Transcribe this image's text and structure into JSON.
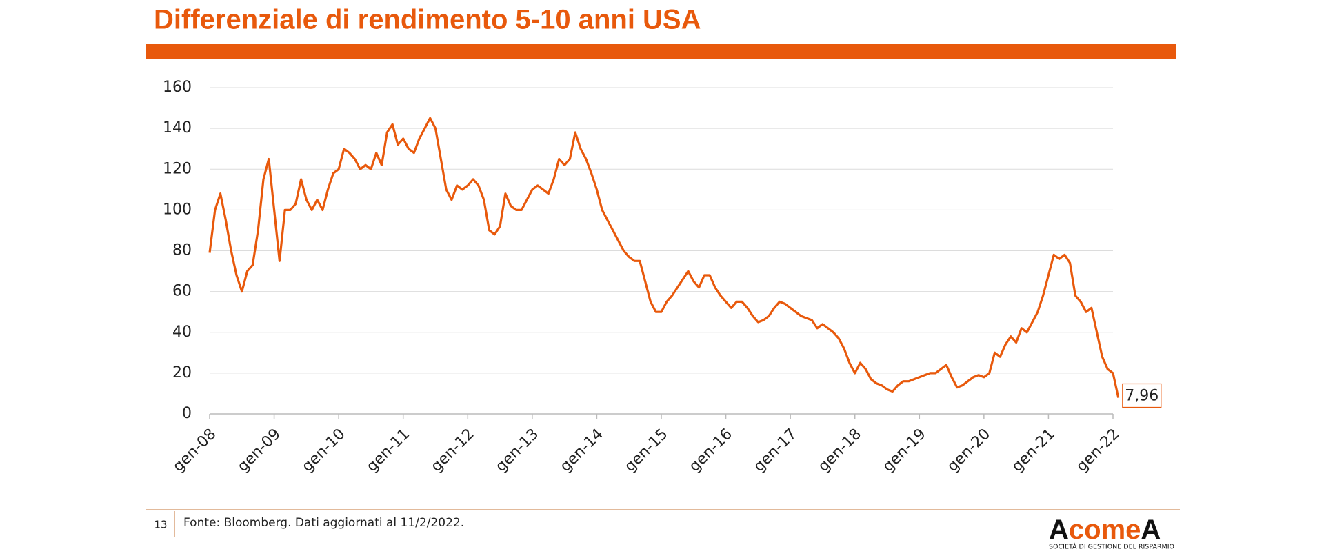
{
  "chart_data": {
    "type": "line",
    "title": "Differenziale di rendimento 5-10 anni USA",
    "x": [
      "2008-01",
      "2008-02",
      "2008-03",
      "2008-04",
      "2008-05",
      "2008-06",
      "2008-07",
      "2008-08",
      "2008-09",
      "2008-10",
      "2008-11",
      "2008-12",
      "2009-01",
      "2009-02",
      "2009-03",
      "2009-04",
      "2009-05",
      "2009-06",
      "2009-07",
      "2009-08",
      "2009-09",
      "2009-10",
      "2009-11",
      "2009-12",
      "2010-01",
      "2010-02",
      "2010-03",
      "2010-04",
      "2010-05",
      "2010-06",
      "2010-07",
      "2010-08",
      "2010-09",
      "2010-10",
      "2010-11",
      "2010-12",
      "2011-01",
      "2011-02",
      "2011-03",
      "2011-04",
      "2011-05",
      "2011-06",
      "2011-07",
      "2011-08",
      "2011-09",
      "2011-10",
      "2011-11",
      "2011-12",
      "2012-01",
      "2012-02",
      "2012-03",
      "2012-04",
      "2012-05",
      "2012-06",
      "2012-07",
      "2012-08",
      "2012-09",
      "2012-10",
      "2012-11",
      "2012-12",
      "2013-01",
      "2013-02",
      "2013-03",
      "2013-04",
      "2013-05",
      "2013-06",
      "2013-07",
      "2013-08",
      "2013-09",
      "2013-10",
      "2013-11",
      "2013-12",
      "2014-01",
      "2014-02",
      "2014-03",
      "2014-04",
      "2014-05",
      "2014-06",
      "2014-07",
      "2014-08",
      "2014-09",
      "2014-10",
      "2014-11",
      "2014-12",
      "2015-01",
      "2015-02",
      "2015-03",
      "2015-04",
      "2015-05",
      "2015-06",
      "2015-07",
      "2015-08",
      "2015-09",
      "2015-10",
      "2015-11",
      "2015-12",
      "2016-01",
      "2016-02",
      "2016-03",
      "2016-04",
      "2016-05",
      "2016-06",
      "2016-07",
      "2016-08",
      "2016-09",
      "2016-10",
      "2016-11",
      "2016-12",
      "2017-01",
      "2017-02",
      "2017-03",
      "2017-04",
      "2017-05",
      "2017-06",
      "2017-07",
      "2017-08",
      "2017-09",
      "2017-10",
      "2017-11",
      "2017-12",
      "2018-01",
      "2018-02",
      "2018-03",
      "2018-04",
      "2018-05",
      "2018-06",
      "2018-07",
      "2018-08",
      "2018-09",
      "2018-10",
      "2018-11",
      "2018-12",
      "2019-01",
      "2019-02",
      "2019-03",
      "2019-04",
      "2019-05",
      "2019-06",
      "2019-07",
      "2019-08",
      "2019-09",
      "2019-10",
      "2019-11",
      "2019-12",
      "2020-01",
      "2020-02",
      "2020-03",
      "2020-04",
      "2020-05",
      "2020-06",
      "2020-07",
      "2020-08",
      "2020-09",
      "2020-10",
      "2020-11",
      "2020-12",
      "2021-01",
      "2021-02",
      "2021-03",
      "2021-04",
      "2021-05",
      "2021-06",
      "2021-07",
      "2021-08",
      "2021-09",
      "2021-10",
      "2021-11",
      "2021-12",
      "2022-01",
      "2022-02"
    ],
    "series": [
      {
        "color": "#e8590c",
        "values": [
          79,
          100,
          108,
          95,
          80,
          68,
          60,
          70,
          73,
          90,
          115,
          125,
          100,
          75,
          100,
          100,
          103,
          115,
          105,
          100,
          105,
          100,
          110,
          118,
          120,
          130,
          128,
          125,
          120,
          122,
          120,
          128,
          122,
          138,
          142,
          132,
          135,
          130,
          128,
          135,
          140,
          145,
          140,
          125,
          110,
          105,
          112,
          110,
          112,
          115,
          112,
          105,
          90,
          88,
          92,
          108,
          102,
          100,
          100,
          105,
          110,
          112,
          110,
          108,
          115,
          125,
          122,
          125,
          138,
          130,
          125,
          118,
          110,
          100,
          95,
          90,
          85,
          80,
          77,
          75,
          75,
          65,
          55,
          50,
          50,
          55,
          58,
          62,
          66,
          70,
          65,
          62,
          68,
          68,
          62,
          58,
          55,
          52,
          55,
          55,
          52,
          48,
          45,
          46,
          48,
          52,
          55,
          54,
          52,
          50,
          48,
          47,
          46,
          42,
          44,
          42,
          40,
          37,
          32,
          25,
          20,
          25,
          22,
          17,
          15,
          14,
          12,
          11,
          14,
          16,
          16,
          17,
          18,
          19,
          20,
          20,
          22,
          24,
          18,
          13,
          14,
          16,
          18,
          19,
          18,
          20,
          30,
          28,
          34,
          38,
          35,
          42,
          40,
          45,
          50,
          58,
          68,
          78,
          76,
          78,
          74,
          58,
          55,
          50,
          52,
          40,
          28,
          22,
          20,
          7.96
        ],
        "value_labels": [
          null,
          null,
          null,
          null,
          null,
          null,
          null,
          null,
          null,
          null,
          null,
          null,
          null,
          null,
          null,
          null,
          null,
          null,
          null,
          null,
          null,
          null,
          null,
          null,
          null,
          null,
          null,
          null,
          null,
          null,
          null,
          null,
          null,
          null,
          null,
          null,
          null,
          null,
          null,
          null,
          null,
          null,
          null,
          null,
          null,
          null,
          null,
          null,
          null,
          null,
          null,
          null,
          null,
          null,
          null,
          null,
          null,
          null,
          null,
          null,
          null,
          null,
          null,
          null,
          null,
          null,
          null,
          null,
          null,
          null,
          null,
          null,
          null,
          null,
          null,
          null,
          null,
          null,
          null,
          null,
          null,
          null,
          null,
          null,
          null,
          null,
          null,
          null,
          null,
          null,
          null,
          null,
          null,
          null,
          null,
          null,
          null,
          null,
          null,
          null,
          null,
          null,
          null,
          null,
          null,
          null,
          null,
          null,
          null,
          null,
          null,
          null,
          null,
          null,
          null,
          null,
          null,
          null,
          null,
          null,
          null,
          null,
          null,
          null,
          null,
          null,
          null,
          null,
          null,
          null,
          null,
          null,
          null,
          null,
          null,
          null,
          null,
          null,
          null,
          null,
          null,
          null,
          null,
          null,
          null,
          null,
          null,
          null,
          null,
          null,
          null,
          null,
          null,
          null,
          null,
          null,
          null,
          null,
          null,
          null,
          null,
          null,
          null,
          null,
          null,
          null,
          null,
          null,
          null,
          "7,96"
        ]
      }
    ],
    "xlim": [
      "2008-01",
      "2022-01"
    ],
    "xticks": [
      {
        "value": "2008-01",
        "label": "gen-08"
      },
      {
        "value": "2009-01",
        "label": "gen-09"
      },
      {
        "value": "2010-01",
        "label": "gen-10"
      },
      {
        "value": "2011-01",
        "label": "gen-11"
      },
      {
        "value": "2012-01",
        "label": "gen-12"
      },
      {
        "value": "2013-01",
        "label": "gen-13"
      },
      {
        "value": "2014-01",
        "label": "gen-14"
      },
      {
        "value": "2015-01",
        "label": "gen-15"
      },
      {
        "value": "2016-01",
        "label": "gen-16"
      },
      {
        "value": "2017-01",
        "label": "gen-17"
      },
      {
        "value": "2018-01",
        "label": "gen-18"
      },
      {
        "value": "2019-01",
        "label": "gen-19"
      },
      {
        "value": "2020-01",
        "label": "gen-20"
      },
      {
        "value": "2021-01",
        "label": "gen-21"
      },
      {
        "value": "2022-01",
        "label": "gen-22"
      }
    ],
    "ylim": [
      0,
      160
    ],
    "yticks": [
      0,
      20,
      40,
      60,
      80,
      100,
      120,
      140,
      160
    ],
    "grid": true
  },
  "footer": {
    "page": "13",
    "source": "Fonte: Bloomberg. Dati aggiornati al 11/2/2022."
  },
  "logo": {
    "start": "A",
    "middle": "come",
    "end": "A",
    "tagline": "SOCIETÀ DI GESTIONE DEL RISPARMIO"
  }
}
